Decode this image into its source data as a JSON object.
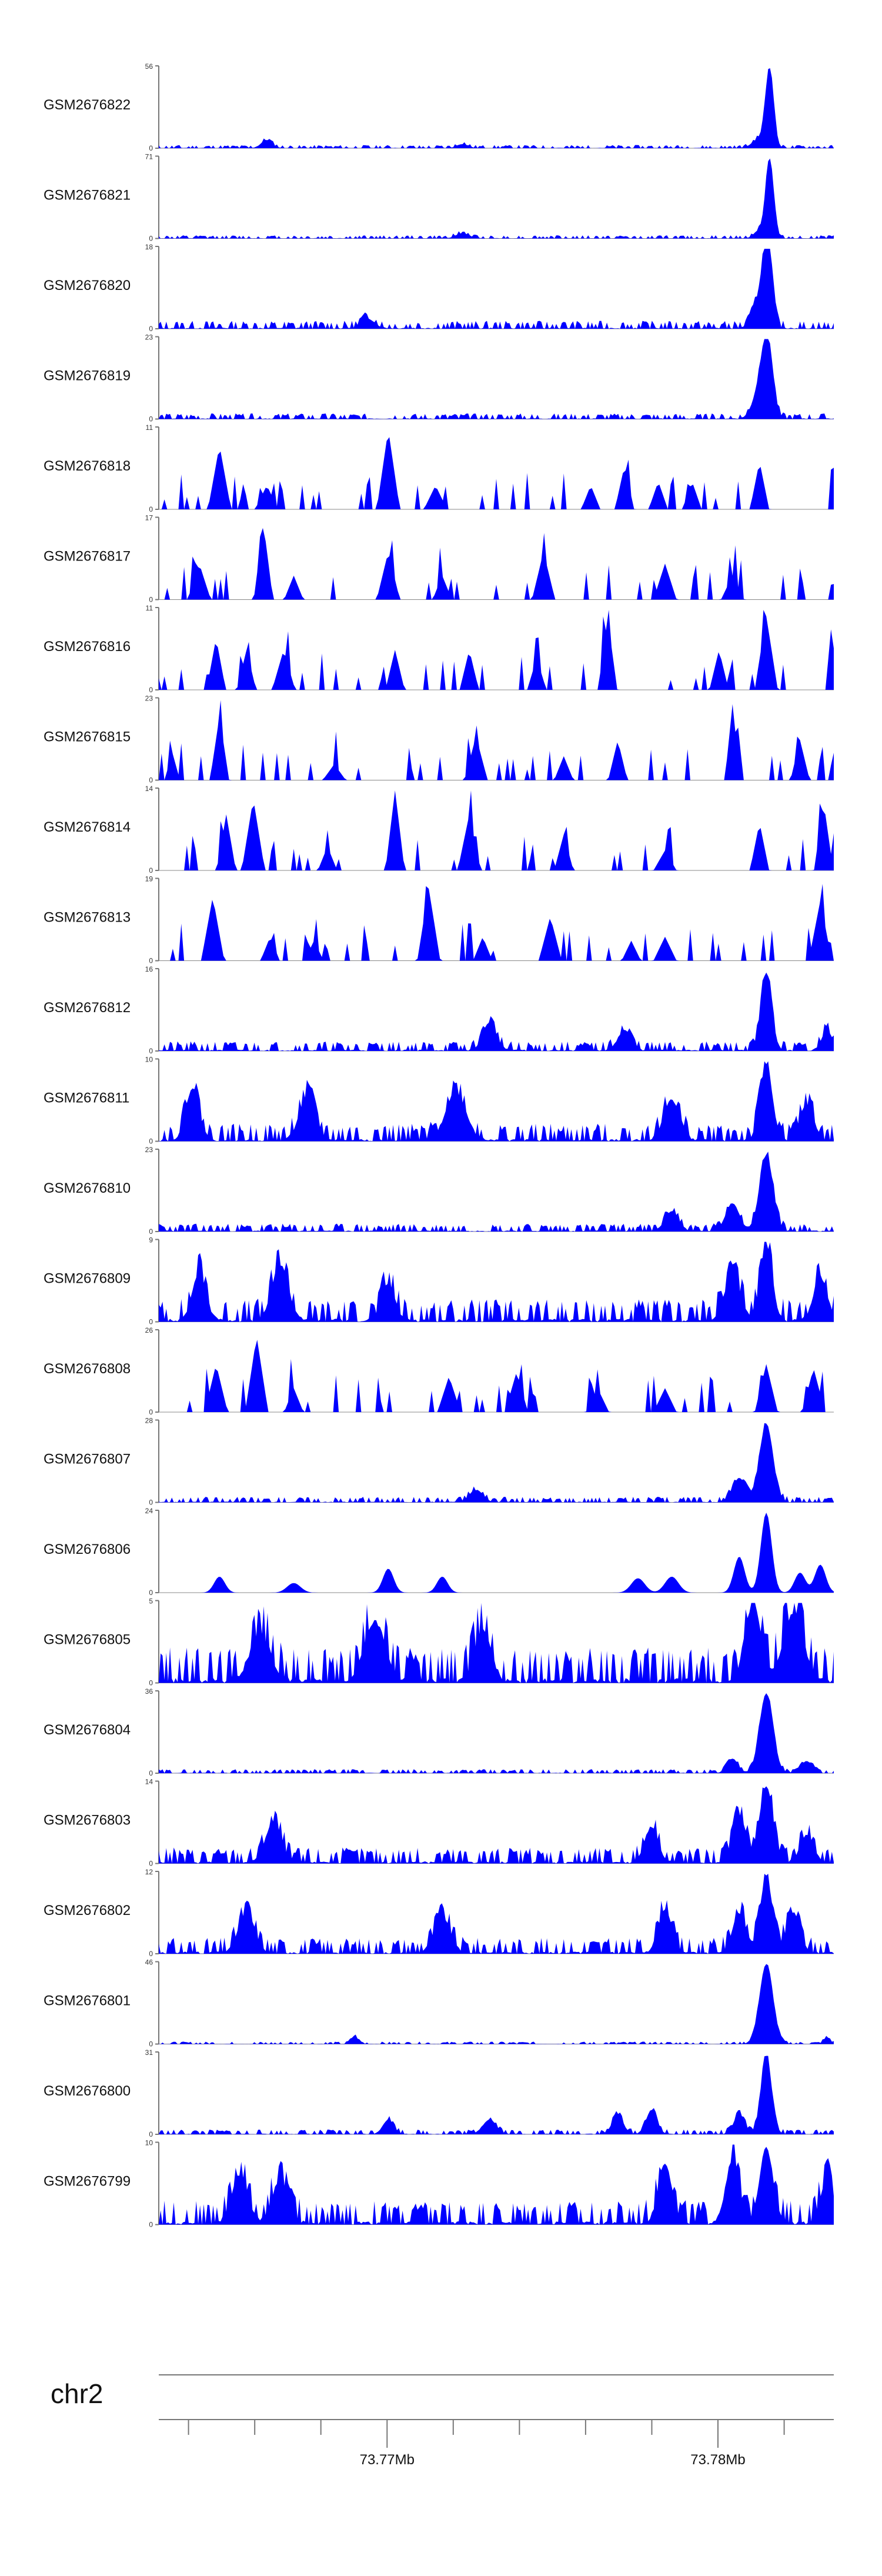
{
  "chart_data": {
    "type": "area",
    "title": "",
    "fill_color": "#0000ff",
    "xlabel": "chr2",
    "x_ticks": [
      {
        "value": 73.77,
        "label": "73.77Mb"
      },
      {
        "value": 73.78,
        "label": "73.78Mb"
      }
    ],
    "xlim_mb": [
      73.7631,
      73.7835
    ],
    "minor_tick_step_mb": 0.002,
    "tracks": [
      {
        "name": "GSM2676822",
        "ymin": "0",
        "ymax": "56",
        "style": "smooth",
        "seed": 11,
        "bg": 0.04,
        "peaks": [
          [
            0.905,
            1.0,
            0.006
          ],
          [
            0.89,
            0.12,
            0.01
          ],
          [
            0.16,
            0.1,
            0.008
          ],
          [
            0.45,
            0.05,
            0.008
          ]
        ]
      },
      {
        "name": "GSM2676821",
        "ymin": "0",
        "ymax": "71",
        "style": "smooth",
        "seed": 12,
        "bg": 0.04,
        "peaks": [
          [
            0.905,
            1.0,
            0.006
          ],
          [
            0.89,
            0.1,
            0.008
          ],
          [
            0.45,
            0.06,
            0.01
          ]
        ]
      },
      {
        "name": "GSM2676820",
        "ymin": "0",
        "ymax": "18",
        "style": "smooth",
        "seed": 13,
        "bg": 0.1,
        "peaks": [
          [
            0.902,
            1.0,
            0.007
          ],
          [
            0.89,
            0.35,
            0.01
          ],
          [
            0.31,
            0.12,
            0.01
          ]
        ]
      },
      {
        "name": "GSM2676819",
        "ymin": "0",
        "ymax": "23",
        "style": "smooth",
        "seed": 14,
        "bg": 0.07,
        "peaks": [
          [
            0.902,
            0.92,
            0.008
          ],
          [
            0.89,
            0.35,
            0.01
          ]
        ]
      },
      {
        "name": "GSM2676818",
        "ymin": "0",
        "ymax": "11",
        "style": "spiky",
        "seed": 15,
        "bg": 0.0,
        "peaks": [
          [
            0.09,
            0.8,
            0.012
          ],
          [
            0.34,
            1.0,
            0.012
          ],
          [
            0.998,
            0.8,
            0.004
          ],
          [
            0.69,
            0.55,
            0.01
          ],
          [
            0.89,
            0.6,
            0.01
          ],
          [
            0.16,
            0.3,
            0.012
          ],
          [
            0.41,
            0.3,
            0.012
          ],
          [
            0.64,
            0.3,
            0.01
          ],
          [
            0.74,
            0.35,
            0.01
          ],
          [
            0.79,
            0.35,
            0.01
          ]
        ]
      },
      {
        "name": "GSM2676817",
        "ymin": "0",
        "ymax": "17",
        "style": "spiky",
        "seed": 16,
        "bg": 0.0,
        "peaks": [
          [
            0.155,
            0.95,
            0.01
          ],
          [
            0.34,
            0.6,
            0.012
          ],
          [
            0.57,
            0.6,
            0.012
          ],
          [
            0.75,
            0.45,
            0.012
          ],
          [
            0.06,
            0.45,
            0.012
          ],
          [
            0.998,
            0.3,
            0.004
          ],
          [
            0.2,
            0.3,
            0.01
          ],
          [
            0.42,
            0.3,
            0.01
          ],
          [
            0.85,
            0.3,
            0.012
          ]
        ]
      },
      {
        "name": "GSM2676816",
        "ymin": "0",
        "ymax": "11",
        "style": "spiky",
        "seed": 17,
        "bg": 0.0,
        "peaks": [
          [
            0.665,
            0.9,
            0.01
          ],
          [
            0.9,
            0.92,
            0.012
          ],
          [
            0.085,
            0.65,
            0.01
          ],
          [
            0.13,
            0.5,
            0.01
          ],
          [
            0.185,
            0.5,
            0.012
          ],
          [
            0.35,
            0.5,
            0.01
          ],
          [
            0.46,
            0.5,
            0.01
          ],
          [
            0.998,
            0.8,
            0.004
          ],
          [
            0.56,
            0.4,
            0.01
          ],
          [
            0.83,
            0.5,
            0.01
          ]
        ]
      },
      {
        "name": "GSM2676815",
        "ymin": "0",
        "ymax": "23",
        "style": "spiky",
        "seed": 18,
        "bg": 0.0,
        "peaks": [
          [
            0.85,
            0.95,
            0.008
          ],
          [
            0.09,
            0.8,
            0.01
          ],
          [
            0.47,
            0.55,
            0.012
          ],
          [
            0.68,
            0.5,
            0.01
          ],
          [
            0.95,
            0.5,
            0.01
          ],
          [
            0.02,
            0.35,
            0.008
          ],
          [
            0.26,
            0.2,
            0.012
          ],
          [
            0.6,
            0.3,
            0.01
          ],
          [
            0.998,
            0.3,
            0.004
          ]
        ]
      },
      {
        "name": "GSM2676814",
        "ymin": "0",
        "ymax": "14",
        "style": "spiky",
        "seed": 19,
        "bg": 0.0,
        "peaks": [
          [
            0.1,
            0.7,
            0.01
          ],
          [
            0.14,
            0.9,
            0.012
          ],
          [
            0.35,
            1.0,
            0.01
          ],
          [
            0.46,
            0.7,
            0.012
          ],
          [
            0.6,
            0.45,
            0.01
          ],
          [
            0.89,
            0.6,
            0.01
          ],
          [
            0.985,
            0.85,
            0.01
          ],
          [
            0.25,
            0.3,
            0.01
          ],
          [
            0.75,
            0.25,
            0.012
          ]
        ]
      },
      {
        "name": "GSM2676813",
        "ymin": "0",
        "ymax": "19",
        "style": "spiky",
        "seed": 20,
        "bg": 0.0,
        "peaks": [
          [
            0.08,
            0.8,
            0.012
          ],
          [
            0.4,
            0.9,
            0.012
          ],
          [
            0.58,
            0.55,
            0.012
          ],
          [
            0.98,
            0.75,
            0.012
          ],
          [
            0.165,
            0.3,
            0.01
          ],
          [
            0.23,
            0.25,
            0.01
          ],
          [
            0.48,
            0.3,
            0.01
          ],
          [
            0.7,
            0.25,
            0.01
          ],
          [
            0.75,
            0.3,
            0.012
          ]
        ]
      },
      {
        "name": "GSM2676812",
        "ymin": "0",
        "ymax": "16",
        "style": "smooth",
        "seed": 21,
        "bg": 0.12,
        "peaks": [
          [
            0.9,
            0.98,
            0.008
          ],
          [
            0.49,
            0.35,
            0.01
          ],
          [
            0.99,
            0.25,
            0.008
          ],
          [
            0.69,
            0.25,
            0.01
          ]
        ]
      },
      {
        "name": "GSM2676811",
        "ymin": "0",
        "ymax": "10",
        "style": "smooth",
        "seed": 22,
        "bg": 0.22,
        "peaks": [
          [
            0.9,
            0.95,
            0.009
          ],
          [
            0.05,
            0.65,
            0.01
          ],
          [
            0.22,
            0.55,
            0.012
          ],
          [
            0.44,
            0.6,
            0.015
          ],
          [
            0.76,
            0.5,
            0.012
          ],
          [
            0.96,
            0.45,
            0.01
          ]
        ]
      },
      {
        "name": "GSM2676810",
        "ymin": "0",
        "ymax": "23",
        "style": "smooth",
        "seed": 23,
        "bg": 0.1,
        "peaks": [
          [
            0.9,
            0.95,
            0.01
          ],
          [
            0.85,
            0.35,
            0.01
          ],
          [
            0.76,
            0.25,
            0.01
          ]
        ]
      },
      {
        "name": "GSM2676809",
        "ymin": "0",
        "ymax": "9",
        "style": "smooth",
        "seed": 24,
        "bg": 0.28,
        "peaks": [
          [
            0.9,
            0.95,
            0.009
          ],
          [
            0.18,
            0.7,
            0.012
          ],
          [
            0.06,
            0.6,
            0.01
          ],
          [
            0.34,
            0.45,
            0.01
          ],
          [
            0.85,
            0.55,
            0.012
          ],
          [
            0.98,
            0.55,
            0.01
          ]
        ]
      },
      {
        "name": "GSM2676808",
        "ymin": "0",
        "ymax": "26",
        "style": "spiky",
        "seed": 25,
        "bg": 0.0,
        "peaks": [
          [
            0.145,
            0.95,
            0.012
          ],
          [
            0.085,
            0.6,
            0.012
          ],
          [
            0.9,
            0.6,
            0.012
          ],
          [
            0.97,
            0.55,
            0.012
          ],
          [
            0.43,
            0.45,
            0.012
          ],
          [
            0.53,
            0.5,
            0.012
          ],
          [
            0.2,
            0.3,
            0.01
          ],
          [
            0.65,
            0.3,
            0.012
          ],
          [
            0.75,
            0.3,
            0.012
          ]
        ]
      },
      {
        "name": "GSM2676807",
        "ymin": "0",
        "ymax": "28",
        "style": "smooth",
        "seed": 26,
        "bg": 0.07,
        "peaks": [
          [
            0.9,
            0.98,
            0.01
          ],
          [
            0.86,
            0.3,
            0.01
          ],
          [
            0.47,
            0.15,
            0.01
          ]
        ]
      },
      {
        "name": "GSM2676806",
        "ymin": "0",
        "ymax": "24",
        "style": "smooth",
        "seed": 27,
        "bg": 0.0,
        "peaks": [
          [
            0.9,
            1.0,
            0.008
          ],
          [
            0.86,
            0.45,
            0.008
          ],
          [
            0.34,
            0.3,
            0.008
          ],
          [
            0.98,
            0.35,
            0.008
          ],
          [
            0.09,
            0.2,
            0.008
          ],
          [
            0.42,
            0.2,
            0.008
          ],
          [
            0.2,
            0.12,
            0.01
          ],
          [
            0.71,
            0.18,
            0.01
          ],
          [
            0.76,
            0.2,
            0.01
          ],
          [
            0.95,
            0.25,
            0.008
          ]
        ]
      },
      {
        "name": "GSM2676805",
        "ymin": "0",
        "ymax": "5",
        "style": "smooth",
        "seed": 28,
        "bg": 0.45,
        "peaks": [
          [
            0.88,
            0.95,
            0.012
          ],
          [
            0.32,
            0.75,
            0.015
          ],
          [
            0.94,
            0.85,
            0.015
          ],
          [
            0.15,
            0.6,
            0.015
          ],
          [
            0.48,
            0.65,
            0.012
          ]
        ]
      },
      {
        "name": "GSM2676804",
        "ymin": "0",
        "ymax": "36",
        "style": "smooth",
        "seed": 29,
        "bg": 0.05,
        "peaks": [
          [
            0.9,
            1.0,
            0.01
          ],
          [
            0.85,
            0.18,
            0.008
          ],
          [
            0.96,
            0.15,
            0.008
          ]
        ]
      },
      {
        "name": "GSM2676803",
        "ymin": "0",
        "ymax": "14",
        "style": "smooth",
        "seed": 30,
        "bg": 0.2,
        "peaks": [
          [
            0.9,
            0.95,
            0.01
          ],
          [
            0.86,
            0.6,
            0.01
          ],
          [
            0.17,
            0.5,
            0.012
          ],
          [
            0.73,
            0.45,
            0.01
          ],
          [
            0.96,
            0.35,
            0.01
          ]
        ]
      },
      {
        "name": "GSM2676802",
        "ymin": "0",
        "ymax": "12",
        "style": "smooth",
        "seed": 31,
        "bg": 0.2,
        "peaks": [
          [
            0.9,
            0.95,
            0.009
          ],
          [
            0.75,
            0.55,
            0.01
          ],
          [
            0.86,
            0.5,
            0.01
          ],
          [
            0.94,
            0.5,
            0.01
          ],
          [
            0.13,
            0.5,
            0.012
          ],
          [
            0.42,
            0.45,
            0.012
          ]
        ]
      },
      {
        "name": "GSM2676801",
        "ymin": "0",
        "ymax": "46",
        "style": "smooth",
        "seed": 32,
        "bg": 0.03,
        "peaks": [
          [
            0.9,
            1.0,
            0.01
          ],
          [
            0.29,
            0.1,
            0.005
          ],
          [
            0.99,
            0.08,
            0.005
          ]
        ]
      },
      {
        "name": "GSM2676800",
        "ymin": "0",
        "ymax": "31",
        "style": "smooth",
        "seed": 33,
        "bg": 0.06,
        "peaks": [
          [
            0.9,
            0.98,
            0.008
          ],
          [
            0.86,
            0.25,
            0.008
          ],
          [
            0.68,
            0.25,
            0.008
          ],
          [
            0.73,
            0.3,
            0.008
          ],
          [
            0.34,
            0.18,
            0.008
          ],
          [
            0.49,
            0.18,
            0.01
          ]
        ]
      },
      {
        "name": "GSM2676799",
        "ymin": "0",
        "ymax": "10",
        "style": "smooth",
        "seed": 34,
        "bg": 0.3,
        "peaks": [
          [
            0.9,
            0.95,
            0.01
          ],
          [
            0.85,
            0.8,
            0.01
          ],
          [
            0.75,
            0.75,
            0.01
          ],
          [
            0.12,
            0.6,
            0.012
          ],
          [
            0.18,
            0.55,
            0.012
          ],
          [
            0.99,
            0.55,
            0.01
          ]
        ]
      }
    ]
  }
}
